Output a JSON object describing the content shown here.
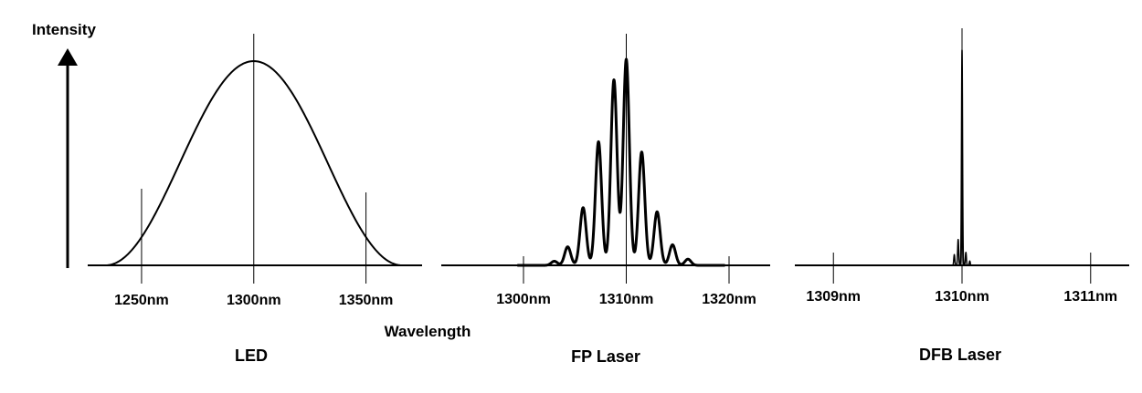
{
  "y_axis_label": "Intensity",
  "x_axis_label": "Wavelength",
  "colors": {
    "line": "#000000",
    "background": "#ffffff"
  },
  "chart_data": [
    {
      "type": "line",
      "title": "LED",
      "xlabel": "Wavelength",
      "ylabel": "Intensity",
      "xlim": [
        1226,
        1375
      ],
      "ylim": [
        0,
        1
      ],
      "tick_values": [
        1250,
        1300,
        1350
      ],
      "tick_labels": [
        "1250nm",
        "1300nm",
        "1350nm"
      ],
      "shape": "raised-cosine",
      "center": 1300,
      "half_width": 66,
      "series": [
        {
          "x": [
            1234,
            1242,
            1250,
            1260,
            1270,
            1280,
            1290,
            1300,
            1310,
            1320,
            1330,
            1340,
            1350,
            1358,
            1366
          ],
          "values": [
            0.0,
            0.13,
            0.29,
            0.51,
            0.72,
            0.88,
            0.97,
            1.0,
            0.97,
            0.88,
            0.72,
            0.51,
            0.29,
            0.13,
            0.0
          ]
        }
      ]
    },
    {
      "type": "line",
      "title": "FP Laser",
      "xlabel": "Wavelength",
      "ylabel": "Intensity",
      "xlim": [
        1292,
        1324
      ],
      "ylim": [
        0,
        1
      ],
      "tick_values": [
        1300,
        1310,
        1320
      ],
      "tick_labels": [
        "1300nm",
        "1310nm",
        "1320nm"
      ],
      "shape": "mode-peaks",
      "mode_width": 0.3,
      "series": [
        {
          "x": [
            1303.0,
            1304.3,
            1305.8,
            1307.3,
            1308.8,
            1310.0,
            1311.5,
            1313.0,
            1314.5,
            1316.0
          ],
          "values": [
            0.02,
            0.09,
            0.28,
            0.6,
            0.9,
            1.0,
            0.55,
            0.26,
            0.1,
            0.03
          ]
        }
      ]
    },
    {
      "type": "line",
      "title": "DFB Laser",
      "xlabel": "Wavelength",
      "ylabel": "Intensity",
      "xlim": [
        1308.7,
        1311.3
      ],
      "ylim": [
        0,
        1
      ],
      "tick_values": [
        1309,
        1310,
        1311
      ],
      "tick_labels": [
        "1309nm",
        "1310nm",
        "1311nm"
      ],
      "shape": "mode-peaks",
      "mode_width": 0.004,
      "series": [
        {
          "x": [
            1309.94,
            1309.97,
            1310.0,
            1310.03,
            1310.06
          ],
          "values": [
            0.05,
            0.12,
            1.0,
            0.06,
            0.02
          ]
        }
      ]
    }
  ]
}
